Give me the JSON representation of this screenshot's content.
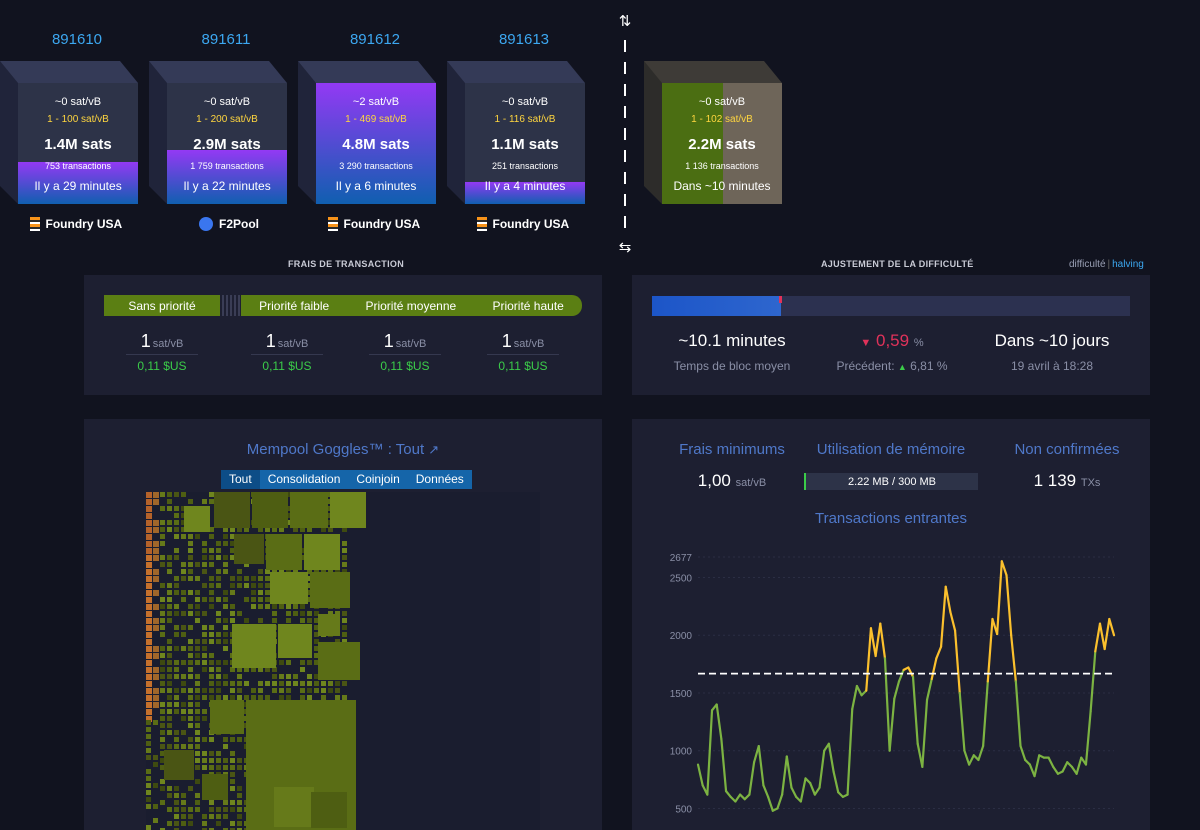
{
  "blocks": [
    {
      "height": "891610",
      "fee": "~0 sat/vB",
      "range": "1 - 100 sat/vB",
      "size": "1.4M sats",
      "txs": "753 transactions",
      "time": "Il y a 29 minutes",
      "pool": "Foundry USA",
      "pool_icon": "foundry-icon",
      "fill_pct": 35
    },
    {
      "height": "891611",
      "fee": "~0 sat/vB",
      "range": "1 - 200 sat/vB",
      "size": "2.9M sats",
      "txs": "1 759 transactions",
      "time": "Il y a 22 minutes",
      "pool": "F2Pool",
      "pool_icon": "f2pool-icon",
      "fill_pct": 45
    },
    {
      "height": "891612",
      "fee": "~2 sat/vB",
      "range": "1 - 469 sat/vB",
      "size": "4.8M sats",
      "txs": "3 290 transactions",
      "time": "Il y a 6 minutes",
      "pool": "Foundry USA",
      "pool_icon": "foundry-icon",
      "fill_pct": 100
    },
    {
      "height": "891613",
      "fee": "~0 sat/vB",
      "range": "1 - 116 sat/vB",
      "size": "1.1M sats",
      "txs": "251 transactions",
      "time": "Il y a 4 minutes",
      "pool": "Foundry USA",
      "pool_icon": "foundry-icon",
      "fill_pct": 18
    }
  ],
  "projected": {
    "fee": "~0 sat/vB",
    "range": "1 - 102 sat/vB",
    "size": "2.2M sats",
    "txs": "1 136 transactions",
    "time": "Dans ~10 minutes"
  },
  "fees": {
    "title": "FRAIS DE TRANSACTION",
    "labels": {
      "none": "Sans priorité",
      "low": "Priorité faible",
      "medium": "Priorité moyenne",
      "high": "Priorité haute"
    },
    "unit": "sat/vB",
    "values": [
      {
        "rate": "1",
        "usd": "0,11 $US"
      },
      {
        "rate": "1",
        "usd": "0,11 $US"
      },
      {
        "rate": "1",
        "usd": "0,11 $US"
      },
      {
        "rate": "1",
        "usd": "0,11 $US"
      }
    ]
  },
  "difficulty": {
    "title": "AJUSTEMENT DE LA DIFFICULTÉ",
    "toggle_a": "difficulté",
    "toggle_b": "halving",
    "progress_pct": 27,
    "avg_block": "~10.1 minutes",
    "avg_block_label": "Temps de bloc moyen",
    "change_arrow": "▼",
    "change": "0,59",
    "change_unit": "%",
    "prev_label": "Précédent:",
    "prev_arrow": "▲",
    "prev_value": "6,81 %",
    "eta": "Dans ~10 jours",
    "eta_date": "19 avril à 18:28"
  },
  "goggles": {
    "title": "Mempool Goggles™ : Tout",
    "tabs": [
      "Tout",
      "Consolidation",
      "Coinjoin",
      "Données"
    ]
  },
  "mempool": {
    "min_fee_label": "Frais minimums",
    "min_fee": "1,00",
    "min_fee_unit": "sat/vB",
    "mem_label": "Utilisation de mémoire",
    "mem_value": "2.22 MB / 300 MB",
    "mem_pct": 0.74,
    "unconf_label": "Non confirmées",
    "unconf": "1 139",
    "unconf_unit": "TXs",
    "chart_title": "Transactions entrantes"
  },
  "chart_data": {
    "type": "line",
    "title": "Transactions entrantes",
    "y_ticks": [
      500,
      1000,
      1500,
      2000,
      2500,
      2677
    ],
    "ylim": [
      400,
      2677
    ],
    "threshold": 1667,
    "threshold_style": "dashed white",
    "colors": {
      "below": "#7cb342",
      "above": "#fbc02d"
    },
    "values": [
      880,
      700,
      620,
      1350,
      1400,
      1100,
      650,
      600,
      560,
      620,
      580,
      620,
      900,
      1040,
      700,
      600,
      480,
      500,
      620,
      950,
      680,
      600,
      560,
      760,
      720,
      620,
      680,
      1000,
      1060,
      820,
      640,
      600,
      620,
      1360,
      1560,
      1480,
      1520,
      2060,
      1820,
      2100,
      1800,
      1000,
      1450,
      1600,
      1700,
      1720,
      1640,
      1060,
      860,
      1440,
      1620,
      1800,
      1900,
      2420,
      2200,
      2040,
      1500,
      1000,
      880,
      960,
      920,
      1040,
      1600,
      2140,
      2010,
      2640,
      2520,
      2000,
      1600,
      1040,
      920,
      880,
      780,
      960,
      940,
      940,
      860,
      800,
      820,
      900,
      860,
      800,
      940,
      880,
      1340,
      1860,
      2100,
      1880,
      2140,
      2000
    ]
  }
}
